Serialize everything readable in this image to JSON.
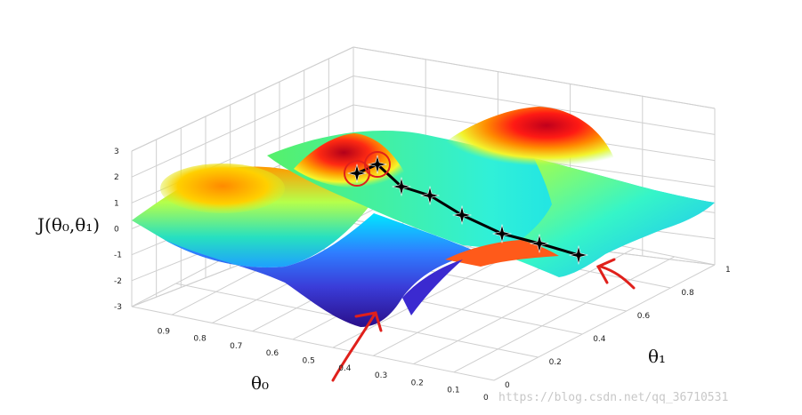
{
  "chart_data": {
    "type": "surface",
    "xlabel": "θ₀",
    "ylabel": "θ₁",
    "zlabel": "J(θ₀,θ₁)",
    "x_ticks": [
      "0.9",
      "0.8",
      "0.7",
      "0.6",
      "0.5",
      "0.4",
      "0.3",
      "0.2",
      "0.1",
      "0"
    ],
    "y_ticks": [
      "0",
      "0.2",
      "0.4",
      "0.6",
      "0.8",
      "1"
    ],
    "z_ticks": [
      "3",
      "2",
      "1",
      "0",
      "-1",
      "-2",
      "-3"
    ],
    "xlim": [
      0,
      1
    ],
    "ylim": [
      0,
      1
    ],
    "zlim": [
      -3,
      3
    ],
    "grid": true,
    "colormap": "jet",
    "descent_path": {
      "color": "#000000",
      "marker": "star",
      "points": [
        {
          "theta0": 0.3,
          "theta1": 0.08,
          "J": 2.0
        },
        {
          "theta0": 0.28,
          "theta1": 0.14,
          "J": 2.3
        },
        {
          "theta0": 0.25,
          "theta1": 0.22,
          "J": 1.5
        },
        {
          "theta0": 0.22,
          "theta1": 0.3,
          "J": 1.1
        },
        {
          "theta0": 0.19,
          "theta1": 0.4,
          "J": 0.4
        },
        {
          "theta0": 0.15,
          "theta1": 0.5,
          "J": -0.3
        },
        {
          "theta0": 0.11,
          "theta1": 0.58,
          "J": -0.7
        },
        {
          "theta0": 0.06,
          "theta1": 0.68,
          "J": -1.1
        }
      ]
    },
    "annotations": [
      {
        "type": "circle",
        "color": "#e0201b",
        "at_point": 0
      },
      {
        "type": "circle",
        "color": "#e0201b",
        "at_point": 1
      },
      {
        "type": "arrow",
        "color": "#e0201b",
        "target": "local minimum"
      },
      {
        "type": "arrow",
        "color": "#e0201b",
        "target": "path end minimum"
      }
    ]
  },
  "watermark": "https://blog.csdn.net/qq_36710531"
}
